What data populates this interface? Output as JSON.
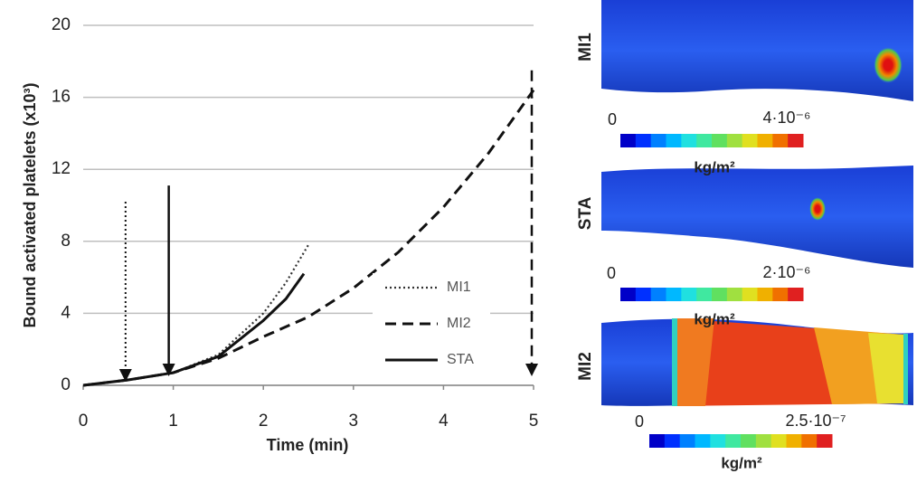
{
  "chart_data": {
    "type": "line",
    "x_label": "Time (min)",
    "y_label": "Bound activated platelets (x10³)",
    "xlim": [
      0,
      5
    ],
    "xticks": [
      0,
      1,
      2,
      3,
      4,
      5
    ],
    "ylim": [
      0,
      20
    ],
    "yticks": [
      0,
      4,
      8,
      12,
      16,
      20
    ],
    "grid": true,
    "legend": "lower-right",
    "series": [
      {
        "name": "MI1",
        "color": "#333333",
        "dash": "dotted",
        "x": [
          0,
          0.5,
          1,
          1.5,
          2,
          2.25,
          2.5
        ],
        "values": [
          0,
          0.3,
          0.7,
          1.7,
          4,
          5.7,
          7.8
        ]
      },
      {
        "name": "MI2",
        "color": "#111111",
        "dash": "dashed",
        "x": [
          0,
          0.5,
          1,
          1.5,
          2,
          2.5,
          3,
          3.5,
          4,
          4.5,
          5
        ],
        "values": [
          0,
          0.3,
          0.7,
          1.5,
          2.7,
          3.8,
          5.4,
          7.4,
          9.9,
          12.9,
          16.4
        ]
      },
      {
        "name": "STA",
        "color": "#111111",
        "dash": "solid",
        "x": [
          0,
          0.5,
          1,
          1.5,
          2,
          2.25,
          2.45
        ],
        "values": [
          0,
          0.3,
          0.7,
          1.6,
          3.6,
          4.8,
          6.2
        ]
      }
    ],
    "arrows": [
      {
        "x": 0.47,
        "y_start": 10.2,
        "y_end": 0.2,
        "dash": "dotted"
      },
      {
        "x": 0.95,
        "y_start": 11.1,
        "y_end": 0.5,
        "dash": "solid"
      },
      {
        "x": 4.98,
        "y_start": 17.5,
        "y_end": 0.5,
        "dash": "dashed"
      }
    ]
  },
  "panels": [
    {
      "label": "MI1",
      "min": "0",
      "max": "4·10⁻⁶",
      "unit": "kg/m²"
    },
    {
      "label": "STA",
      "min": "0",
      "max": "2·10⁻⁶",
      "unit": "kg/m²"
    },
    {
      "label": "MI2",
      "min": "0",
      "max": "2.5·10⁻⁷",
      "unit": "kg/m²"
    }
  ]
}
